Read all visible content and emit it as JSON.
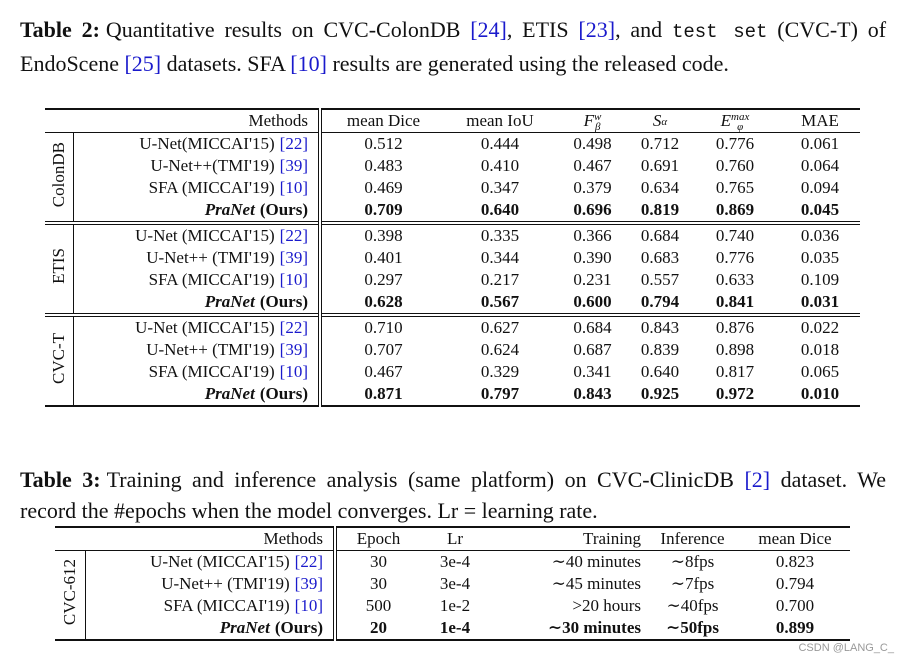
{
  "table2": {
    "caption": {
      "label": "Table 2:",
      "parts": [
        {
          "text": "Quantitative results on CVC-ColonDB ",
          "kind": "plain"
        },
        {
          "text": "[24]",
          "kind": "cite"
        },
        {
          "text": ", ETIS ",
          "kind": "plain"
        },
        {
          "text": "[23]",
          "kind": "cite"
        },
        {
          "text": ", and ",
          "kind": "plain"
        },
        {
          "text": "test set",
          "kind": "mono"
        },
        {
          "text": " (CVC-T) of EndoScene ",
          "kind": "plain"
        },
        {
          "text": "[25]",
          "kind": "cite"
        },
        {
          "text": " datasets. SFA ",
          "kind": "plain"
        },
        {
          "text": "[10]",
          "kind": "cite"
        },
        {
          "text": " results are generated using the released code.",
          "kind": "plain"
        }
      ]
    },
    "columns": [
      {
        "base": "Methods"
      },
      {
        "base": "mean Dice"
      },
      {
        "base": "mean IoU"
      },
      {
        "base": "F",
        "sub": "β",
        "sup": "w"
      },
      {
        "base": "S",
        "sub": "α"
      },
      {
        "base": "E",
        "sub": "φ",
        "sup": "max"
      },
      {
        "base": "MAE"
      }
    ],
    "groups": [
      {
        "label": "ColonDB",
        "rows": [
          {
            "method": {
              "name": "U-Net(MICCAI'15)",
              "cite": "[22]"
            },
            "values": [
              "0.512",
              "0.444",
              "0.498",
              "0.712",
              "0.776",
              "0.061"
            ]
          },
          {
            "method": {
              "name": "U-Net++(TMI'19)",
              "cite": "[39]"
            },
            "values": [
              "0.483",
              "0.410",
              "0.467",
              "0.691",
              "0.760",
              "0.064"
            ]
          },
          {
            "method": {
              "name": "SFA (MICCAI'19)",
              "cite": "[10]"
            },
            "values": [
              "0.469",
              "0.347",
              "0.379",
              "0.634",
              "0.765",
              "0.094"
            ]
          },
          {
            "method": {
              "name": "PraNet",
              "suffix": "(Ours)"
            },
            "values": [
              "0.709",
              "0.640",
              "0.696",
              "0.819",
              "0.869",
              "0.045"
            ],
            "best": true
          }
        ]
      },
      {
        "label": "ETIS",
        "rows": [
          {
            "method": {
              "name": "U-Net (MICCAI'15)",
              "cite": "[22]"
            },
            "values": [
              "0.398",
              "0.335",
              "0.366",
              "0.684",
              "0.740",
              "0.036"
            ]
          },
          {
            "method": {
              "name": "U-Net++ (TMI'19)",
              "cite": "[39]"
            },
            "values": [
              "0.401",
              "0.344",
              "0.390",
              "0.683",
              "0.776",
              "0.035"
            ]
          },
          {
            "method": {
              "name": "SFA (MICCAI'19)",
              "cite": "[10]"
            },
            "values": [
              "0.297",
              "0.217",
              "0.231",
              "0.557",
              "0.633",
              "0.109"
            ]
          },
          {
            "method": {
              "name": "PraNet",
              "suffix": "(Ours)"
            },
            "values": [
              "0.628",
              "0.567",
              "0.600",
              "0.794",
              "0.841",
              "0.031"
            ],
            "best": true
          }
        ]
      },
      {
        "label": "CVC-T",
        "rows": [
          {
            "method": {
              "name": "U-Net (MICCAI'15)",
              "cite": "[22]"
            },
            "values": [
              "0.710",
              "0.627",
              "0.684",
              "0.843",
              "0.876",
              "0.022"
            ]
          },
          {
            "method": {
              "name": "U-Net++ (TMI'19)",
              "cite": "[39]"
            },
            "values": [
              "0.707",
              "0.624",
              "0.687",
              "0.839",
              "0.898",
              "0.018"
            ]
          },
          {
            "method": {
              "name": "SFA (MICCAI'19)",
              "cite": "[10]"
            },
            "values": [
              "0.467",
              "0.329",
              "0.341",
              "0.640",
              "0.817",
              "0.065"
            ]
          },
          {
            "method": {
              "name": "PraNet",
              "suffix": "(Ours)"
            },
            "values": [
              "0.871",
              "0.797",
              "0.843",
              "0.925",
              "0.972",
              "0.010"
            ],
            "best": true
          }
        ]
      }
    ]
  },
  "table3": {
    "caption": {
      "label": "Table 3:",
      "parts": [
        {
          "text": "Training and inference analysis (same platform) on CVC-ClinicDB ",
          "kind": "plain"
        },
        {
          "text": "[2]",
          "kind": "cite"
        },
        {
          "text": " dataset. We record the #epochs when the model converges. Lr = learning rate.",
          "kind": "plain"
        }
      ]
    },
    "columns": [
      {
        "base": "Methods"
      },
      {
        "base": "Epoch"
      },
      {
        "base": "Lr"
      },
      {
        "base": "Training"
      },
      {
        "base": "Inference"
      },
      {
        "base": "mean Dice"
      }
    ],
    "groups": [
      {
        "label": "CVC-612",
        "rows": [
          {
            "method": {
              "name": "U-Net (MICCAI'15)",
              "cite": "[22]"
            },
            "values": [
              "30",
              "3e-4",
              "∼40 minutes",
              "∼8fps",
              "0.823"
            ]
          },
          {
            "method": {
              "name": "U-Net++ (TMI'19)",
              "cite": "[39]"
            },
            "values": [
              "30",
              "3e-4",
              "∼45 minutes",
              "∼7fps",
              "0.794"
            ]
          },
          {
            "method": {
              "name": "SFA (MICCAI'19)",
              "cite": "[10]"
            },
            "values": [
              "500",
              "1e-2",
              ">20 hours",
              "∼40fps",
              "0.700"
            ]
          },
          {
            "method": {
              "name": "PraNet",
              "suffix": "(Ours)"
            },
            "values": [
              "20",
              "1e-4",
              "∼30 minutes",
              "∼50fps",
              "0.899"
            ],
            "best": true
          }
        ]
      }
    ]
  },
  "watermark": "CSDN @LANG_C_"
}
